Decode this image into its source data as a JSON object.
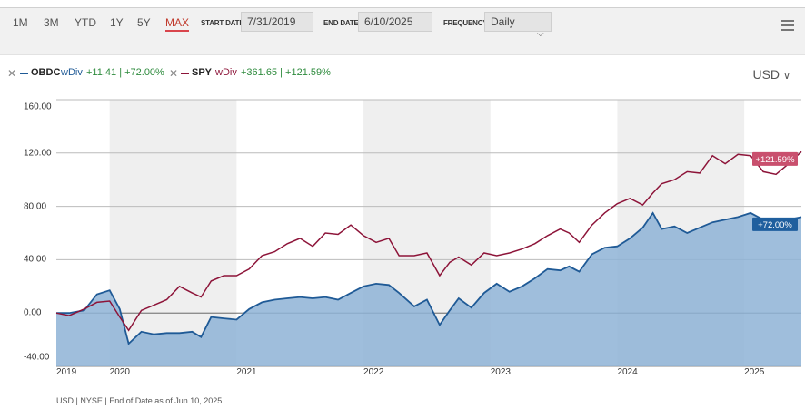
{
  "toolbar": {
    "ranges": [
      "1M",
      "3M",
      "YTD",
      "1Y",
      "5Y",
      "MAX"
    ],
    "active_range": "MAX",
    "start_label": "START DATE",
    "start_value": "7/31/2019",
    "end_label": "END DATE",
    "end_value": "6/10/2025",
    "freq_label": "FREQUENCY",
    "freq_value": "Daily"
  },
  "legend": {
    "s1_ticker": "OBDC",
    "s1_div": "wDiv",
    "s1_stats": "+11.41 | +72.00%",
    "s2_ticker": "SPY",
    "s2_div": "wDiv",
    "s2_stats": "+361.65 | +121.59%"
  },
  "currency": "USD",
  "footer": "USD | NYSE | End of Date as of Jun 10, 2025",
  "colors": {
    "obdc_line": "#1f5a96",
    "obdc_fill": "#8eb3d6",
    "spy_line": "#8d1439",
    "spy_badge": "#c9506e",
    "obdc_badge": "#1f5f9e",
    "band": "#efefef",
    "gain_text": "#2e8b3d"
  },
  "chart_data": {
    "type": "area",
    "x_unit": "year",
    "ylim": [
      -40,
      160
    ],
    "yticks": [
      "160.00",
      "120.00",
      "80.00",
      "40.00",
      "0.00",
      "-40.00"
    ],
    "ytick_values": [
      160,
      120,
      80,
      40,
      0,
      -40
    ],
    "xticks": [
      "2019",
      "2020",
      "2021",
      "2022",
      "2023",
      "2024",
      "2025"
    ],
    "xtick_values": [
      2019.0,
      2020.0,
      2021.0,
      2022.0,
      2023.0,
      2024.0,
      2025.0
    ],
    "grid": true,
    "series": [
      {
        "name": "OBDC",
        "end_label": "+72.00%",
        "x": [
          2019.58,
          2019.68,
          2019.8,
          2019.9,
          2020.0,
          2020.08,
          2020.15,
          2020.25,
          2020.35,
          2020.45,
          2020.55,
          2020.65,
          2020.72,
          2020.8,
          2020.9,
          2021.0,
          2021.1,
          2021.2,
          2021.3,
          2021.4,
          2021.5,
          2021.6,
          2021.7,
          2021.8,
          2021.9,
          2022.0,
          2022.1,
          2022.2,
          2022.28,
          2022.4,
          2022.5,
          2022.6,
          2022.68,
          2022.75,
          2022.85,
          2022.95,
          2023.05,
          2023.15,
          2023.25,
          2023.35,
          2023.45,
          2023.55,
          2023.62,
          2023.7,
          2023.8,
          2023.9,
          2024.0,
          2024.1,
          2024.2,
          2024.28,
          2024.35,
          2024.45,
          2024.55,
          2024.65,
          2024.75,
          2024.85,
          2024.95,
          2025.05,
          2025.15,
          2025.25,
          2025.35,
          2025.45
        ],
        "values": [
          0,
          0,
          2,
          14,
          17,
          3,
          -23,
          -14,
          -16,
          -15,
          -15,
          -14,
          -18,
          -3,
          -4,
          -5,
          3,
          8,
          10,
          11,
          12,
          11,
          12,
          10,
          15,
          20,
          22,
          21,
          15,
          5,
          10,
          -9,
          2,
          11,
          4,
          15,
          22,
          16,
          20,
          26,
          33,
          32,
          35,
          31,
          44,
          49,
          50,
          56,
          64,
          75,
          63,
          65,
          60,
          64,
          68,
          70,
          72,
          75,
          70,
          68,
          70,
          72
        ]
      },
      {
        "name": "SPY",
        "end_label": "+121.59%",
        "x": [
          2019.58,
          2019.68,
          2019.8,
          2019.9,
          2020.0,
          2020.08,
          2020.15,
          2020.25,
          2020.35,
          2020.45,
          2020.55,
          2020.65,
          2020.72,
          2020.8,
          2020.9,
          2021.0,
          2021.1,
          2021.2,
          2021.3,
          2021.4,
          2021.5,
          2021.6,
          2021.7,
          2021.8,
          2021.9,
          2022.0,
          2022.1,
          2022.2,
          2022.28,
          2022.4,
          2022.5,
          2022.6,
          2022.68,
          2022.75,
          2022.85,
          2022.95,
          2023.05,
          2023.15,
          2023.25,
          2023.35,
          2023.45,
          2023.55,
          2023.62,
          2023.7,
          2023.8,
          2023.9,
          2024.0,
          2024.1,
          2024.2,
          2024.28,
          2024.35,
          2024.45,
          2024.55,
          2024.65,
          2024.75,
          2024.85,
          2024.95,
          2025.05,
          2025.15,
          2025.25,
          2025.35,
          2025.45
        ],
        "values": [
          0,
          -2,
          3,
          8,
          9,
          -3,
          -13,
          2,
          6,
          10,
          20,
          15,
          12,
          24,
          28,
          28,
          33,
          43,
          46,
          52,
          56,
          50,
          60,
          59,
          66,
          58,
          53,
          56,
          43,
          43,
          45,
          28,
          38,
          42,
          36,
          45,
          43,
          45,
          48,
          52,
          58,
          63,
          60,
          53,
          66,
          75,
          82,
          86,
          81,
          90,
          97,
          100,
          106,
          105,
          118,
          112,
          119,
          118,
          106,
          104,
          112,
          121
        ]
      }
    ]
  }
}
